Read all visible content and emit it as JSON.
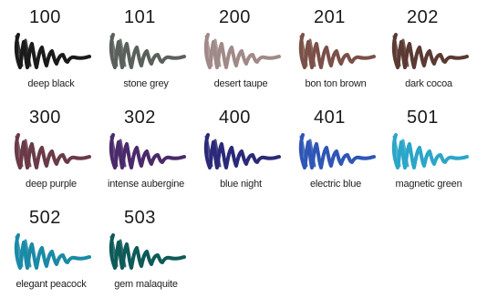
{
  "swatches": [
    {
      "number": "100",
      "name": "deep black",
      "color": "#1a1a1a"
    },
    {
      "number": "101",
      "name": "stone grey",
      "color": "#5a605c"
    },
    {
      "number": "200",
      "name": "desert taupe",
      "color": "#a08a88"
    },
    {
      "number": "201",
      "name": "bon ton brown",
      "color": "#7a5048"
    },
    {
      "number": "202",
      "name": "dark cocoa",
      "color": "#5a3a32"
    },
    {
      "number": "300",
      "name": "deep purple",
      "color": "#6a3a48"
    },
    {
      "number": "302",
      "name": "intense aubergine",
      "color": "#4a2a6a"
    },
    {
      "number": "400",
      "name": "blue night",
      "color": "#2a2a78"
    },
    {
      "number": "401",
      "name": "electric blue",
      "color": "#2e56b6"
    },
    {
      "number": "501",
      "name": "magnetic green",
      "color": "#2aa6c8"
    },
    {
      "number": "502",
      "name": "elegant peacock",
      "color": "#1a8aa6"
    },
    {
      "number": "503",
      "name": "gem malaquite",
      "color": "#0e5a58"
    }
  ]
}
